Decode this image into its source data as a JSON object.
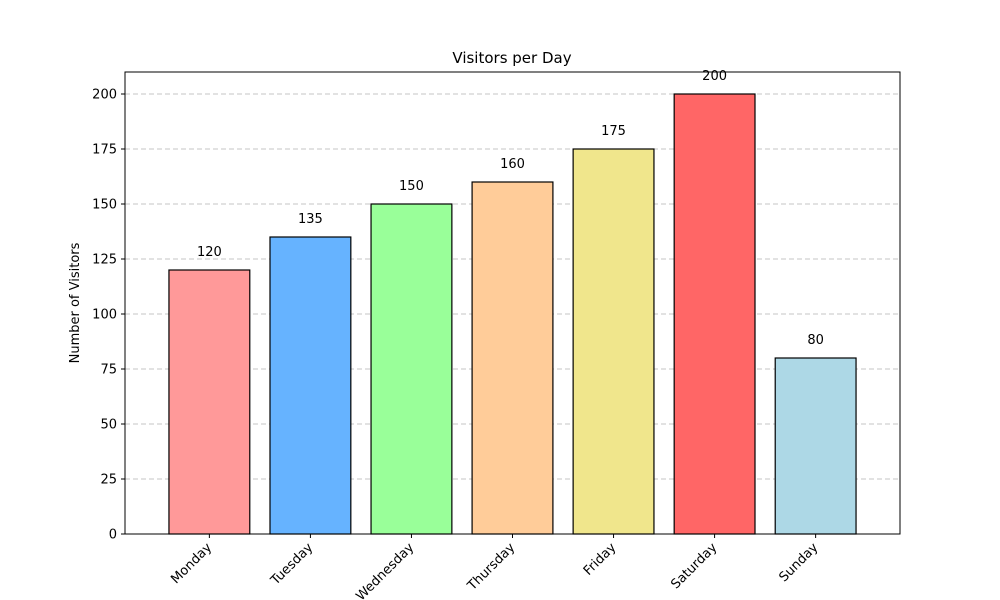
{
  "chart_data": {
    "type": "bar",
    "title": "Visitors per Day",
    "xlabel": "",
    "ylabel": "Number of Visitors",
    "categories": [
      "Monday",
      "Tuesday",
      "Wednesday",
      "Thursday",
      "Friday",
      "Saturday",
      "Sunday"
    ],
    "values": [
      120,
      135,
      150,
      160,
      175,
      200,
      80
    ],
    "data_labels": [
      "120",
      "135",
      "150",
      "160",
      "175",
      "200",
      "80"
    ],
    "colors": [
      "#ff9999",
      "#66b3ff",
      "#99ff99",
      "#ffcc99",
      "#f0e68c",
      "#ff6666",
      "#add8e6"
    ],
    "bar_edge_color": "#000000",
    "ylim": [
      0,
      210
    ],
    "yticks": [
      0,
      25,
      50,
      75,
      100,
      125,
      150,
      175,
      200
    ],
    "ytick_labels": [
      "0",
      "25",
      "50",
      "75",
      "100",
      "125",
      "150",
      "175",
      "200"
    ],
    "grid": "y-dashed"
  }
}
